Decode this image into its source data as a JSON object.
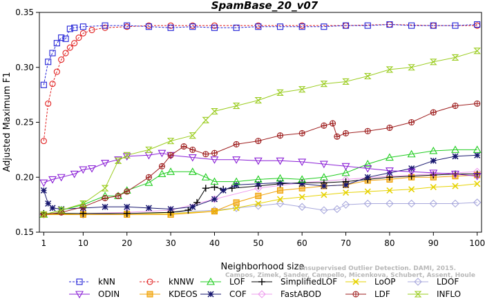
{
  "chart_data": {
    "type": "line",
    "title": "SpamBase_20_v07",
    "xlabel": "Neighborhood size",
    "ylabel": "Adjusted Maximum F1",
    "xlim": [
      0,
      101
    ],
    "ylim": [
      0.15,
      0.35
    ],
    "x_ticks": [
      1,
      10,
      20,
      30,
      40,
      50,
      60,
      70,
      80,
      90,
      100
    ],
    "y_ticks": [
      0.15,
      0.2,
      0.25,
      0.3,
      0.35
    ],
    "y_tick_labels": [
      "0.15",
      "0.20",
      "0.25",
      "0.30",
      "0.35"
    ],
    "grid": false,
    "legend_position": "bottom",
    "series": [
      {
        "name": "kNN",
        "color": "#1f1fd6",
        "dash": "3,2",
        "marker": "square",
        "points": [
          [
            1,
            0.284
          ],
          [
            2,
            0.305
          ],
          [
            3,
            0.313
          ],
          [
            4,
            0.322
          ],
          [
            5,
            0.327
          ],
          [
            6,
            0.326
          ],
          [
            7,
            0.335
          ],
          [
            8,
            0.336
          ],
          [
            10,
            0.337
          ],
          [
            15,
            0.338
          ],
          [
            20,
            0.338
          ],
          [
            25,
            0.337
          ],
          [
            30,
            0.336
          ],
          [
            35,
            0.337
          ],
          [
            40,
            0.336
          ],
          [
            45,
            0.336
          ],
          [
            50,
            0.337
          ],
          [
            55,
            0.337
          ],
          [
            60,
            0.337
          ],
          [
            65,
            0.337
          ],
          [
            70,
            0.338
          ],
          [
            75,
            0.338
          ],
          [
            80,
            0.339
          ],
          [
            85,
            0.338
          ],
          [
            90,
            0.338
          ],
          [
            95,
            0.338
          ],
          [
            100,
            0.339
          ]
        ]
      },
      {
        "name": "kNNW",
        "color": "#e01c1c",
        "dash": "3,2",
        "marker": "circle",
        "points": [
          [
            1,
            0.233
          ],
          [
            2,
            0.267
          ],
          [
            3,
            0.285
          ],
          [
            4,
            0.296
          ],
          [
            5,
            0.307
          ],
          [
            6,
            0.313
          ],
          [
            7,
            0.318
          ],
          [
            8,
            0.322
          ],
          [
            9,
            0.327
          ],
          [
            10,
            0.331
          ],
          [
            12,
            0.334
          ],
          [
            15,
            0.336
          ],
          [
            20,
            0.337
          ],
          [
            25,
            0.338
          ],
          [
            30,
            0.338
          ],
          [
            35,
            0.338
          ],
          [
            40,
            0.338
          ],
          [
            50,
            0.338
          ],
          [
            60,
            0.338
          ],
          [
            70,
            0.338
          ],
          [
            80,
            0.339
          ],
          [
            90,
            0.338
          ],
          [
            100,
            0.338
          ]
        ]
      },
      {
        "name": "LOF",
        "color": "#1ecc1e",
        "dash": "",
        "marker": "triangle-up",
        "points": [
          [
            1,
            0.166
          ],
          [
            5,
            0.17
          ],
          [
            10,
            0.175
          ],
          [
            15,
            0.183
          ],
          [
            18,
            0.183
          ],
          [
            20,
            0.188
          ],
          [
            25,
            0.195
          ],
          [
            28,
            0.203
          ],
          [
            30,
            0.205
          ],
          [
            35,
            0.205
          ],
          [
            38,
            0.2
          ],
          [
            40,
            0.196
          ],
          [
            45,
            0.196
          ],
          [
            50,
            0.198
          ],
          [
            55,
            0.199
          ],
          [
            60,
            0.198
          ],
          [
            65,
            0.2
          ],
          [
            70,
            0.204
          ],
          [
            75,
            0.212
          ],
          [
            80,
            0.218
          ],
          [
            85,
            0.221
          ],
          [
            90,
            0.224
          ],
          [
            95,
            0.225
          ],
          [
            100,
            0.225
          ]
        ]
      },
      {
        "name": "SimplifiedLOF",
        "color": "#000000",
        "dash": "",
        "marker": "plus",
        "points": [
          [
            1,
            0.167
          ],
          [
            10,
            0.167
          ],
          [
            20,
            0.167
          ],
          [
            30,
            0.168
          ],
          [
            34,
            0.17
          ],
          [
            36,
            0.177
          ],
          [
            38,
            0.19
          ],
          [
            40,
            0.191
          ],
          [
            42,
            0.189
          ],
          [
            44,
            0.19
          ],
          [
            50,
            0.192
          ],
          [
            55,
            0.194
          ],
          [
            60,
            0.195
          ],
          [
            65,
            0.195
          ],
          [
            70,
            0.196
          ],
          [
            75,
            0.198
          ],
          [
            80,
            0.2
          ],
          [
            85,
            0.201
          ],
          [
            90,
            0.202
          ],
          [
            95,
            0.203
          ],
          [
            100,
            0.203
          ]
        ]
      },
      {
        "name": "LoOP",
        "color": "#e6d200",
        "dash": "",
        "marker": "cross",
        "points": [
          [
            1,
            0.166
          ],
          [
            10,
            0.167
          ],
          [
            20,
            0.167
          ],
          [
            30,
            0.167
          ],
          [
            40,
            0.169
          ],
          [
            45,
            0.172
          ],
          [
            50,
            0.176
          ],
          [
            55,
            0.18
          ],
          [
            60,
            0.182
          ],
          [
            65,
            0.184
          ],
          [
            70,
            0.186
          ],
          [
            75,
            0.187
          ],
          [
            80,
            0.188
          ],
          [
            85,
            0.189
          ],
          [
            90,
            0.191
          ],
          [
            95,
            0.192
          ],
          [
            100,
            0.194
          ]
        ]
      },
      {
        "name": "LDOF",
        "color": "#a8a8dc",
        "dash": "",
        "marker": "diamond",
        "points": [
          [
            1,
            0.166
          ],
          [
            10,
            0.166
          ],
          [
            20,
            0.167
          ],
          [
            30,
            0.168
          ],
          [
            40,
            0.17
          ],
          [
            45,
            0.172
          ],
          [
            50,
            0.174
          ],
          [
            55,
            0.176
          ],
          [
            60,
            0.173
          ],
          [
            65,
            0.17
          ],
          [
            68,
            0.171
          ],
          [
            70,
            0.175
          ],
          [
            75,
            0.176
          ],
          [
            80,
            0.176
          ],
          [
            85,
            0.176
          ],
          [
            90,
            0.176
          ],
          [
            95,
            0.176
          ],
          [
            100,
            0.177
          ]
        ]
      },
      {
        "name": "ODIN",
        "color": "#8a1fd6",
        "dash": "",
        "marker": "triangle-down",
        "points": [
          [
            1,
            0.195
          ],
          [
            3,
            0.198
          ],
          [
            5,
            0.2
          ],
          [
            8,
            0.203
          ],
          [
            10,
            0.207
          ],
          [
            12,
            0.208
          ],
          [
            15,
            0.213
          ],
          [
            18,
            0.216
          ],
          [
            20,
            0.219
          ],
          [
            25,
            0.22
          ],
          [
            28,
            0.222
          ],
          [
            30,
            0.22
          ],
          [
            35,
            0.218
          ],
          [
            40,
            0.216
          ],
          [
            45,
            0.216
          ],
          [
            50,
            0.215
          ],
          [
            55,
            0.215
          ],
          [
            60,
            0.214
          ],
          [
            65,
            0.212
          ],
          [
            70,
            0.21
          ],
          [
            75,
            0.208
          ],
          [
            80,
            0.206
          ],
          [
            85,
            0.205
          ],
          [
            90,
            0.204
          ],
          [
            95,
            0.203
          ],
          [
            100,
            0.201
          ]
        ]
      },
      {
        "name": "KDEOS",
        "color": "#f0a000",
        "dash": "",
        "marker": "square-filled",
        "points": [
          [
            1,
            0.166
          ],
          [
            10,
            0.166
          ],
          [
            20,
            0.166
          ],
          [
            30,
            0.166
          ],
          [
            40,
            0.169
          ],
          [
            45,
            0.177
          ],
          [
            50,
            0.183
          ],
          [
            55,
            0.188
          ],
          [
            60,
            0.19
          ],
          [
            65,
            0.192
          ],
          [
            70,
            0.193
          ],
          [
            75,
            0.197
          ],
          [
            80,
            0.198
          ],
          [
            85,
            0.2
          ],
          [
            90,
            0.2
          ],
          [
            95,
            0.201
          ],
          [
            100,
            0.202
          ]
        ]
      },
      {
        "name": "COF",
        "color": "#16166e",
        "dash": "",
        "marker": "star",
        "points": [
          [
            1,
            0.188
          ],
          [
            2,
            0.176
          ],
          [
            3,
            0.172
          ],
          [
            5,
            0.171
          ],
          [
            10,
            0.172
          ],
          [
            15,
            0.173
          ],
          [
            20,
            0.173
          ],
          [
            25,
            0.172
          ],
          [
            30,
            0.171
          ],
          [
            35,
            0.173
          ],
          [
            40,
            0.18
          ],
          [
            42,
            0.188
          ],
          [
            45,
            0.193
          ],
          [
            50,
            0.194
          ],
          [
            55,
            0.195
          ],
          [
            60,
            0.194
          ],
          [
            65,
            0.192
          ],
          [
            70,
            0.193
          ],
          [
            75,
            0.2
          ],
          [
            80,
            0.204
          ],
          [
            85,
            0.208
          ],
          [
            90,
            0.215
          ],
          [
            95,
            0.219
          ],
          [
            100,
            0.22
          ]
        ]
      },
      {
        "name": "FastABOD",
        "color": "#ee9cee",
        "dash": "",
        "marker": "diamond",
        "points": [
          [
            1,
            0.166
          ],
          [
            10,
            0.167
          ],
          [
            20,
            0.168
          ],
          [
            30,
            0.17
          ],
          [
            40,
            0.18
          ],
          [
            50,
            0.19
          ],
          [
            60,
            0.195
          ],
          [
            70,
            0.198
          ],
          [
            80,
            0.201
          ],
          [
            90,
            0.203
          ],
          [
            100,
            0.205
          ]
        ]
      },
      {
        "name": "LDF",
        "color": "#9e1e1e",
        "dash": "",
        "marker": "circle-plus",
        "points": [
          [
            1,
            0.166
          ],
          [
            5,
            0.168
          ],
          [
            10,
            0.173
          ],
          [
            15,
            0.181
          ],
          [
            18,
            0.183
          ],
          [
            20,
            0.187
          ],
          [
            25,
            0.2
          ],
          [
            28,
            0.21
          ],
          [
            30,
            0.22
          ],
          [
            33,
            0.228
          ],
          [
            35,
            0.225
          ],
          [
            38,
            0.221
          ],
          [
            40,
            0.222
          ],
          [
            45,
            0.23
          ],
          [
            50,
            0.233
          ],
          [
            55,
            0.238
          ],
          [
            60,
            0.24
          ],
          [
            65,
            0.247
          ],
          [
            67,
            0.249
          ],
          [
            68,
            0.237
          ],
          [
            70,
            0.24
          ],
          [
            75,
            0.242
          ],
          [
            80,
            0.245
          ],
          [
            85,
            0.25
          ],
          [
            90,
            0.259
          ],
          [
            95,
            0.265
          ],
          [
            100,
            0.267
          ]
        ]
      },
      {
        "name": "INFLO",
        "color": "#9acc1e",
        "dash": "",
        "marker": "hourglass",
        "points": [
          [
            1,
            0.166
          ],
          [
            5,
            0.17
          ],
          [
            10,
            0.176
          ],
          [
            15,
            0.19
          ],
          [
            18,
            0.215
          ],
          [
            20,
            0.22
          ],
          [
            25,
            0.225
          ],
          [
            30,
            0.233
          ],
          [
            35,
            0.238
          ],
          [
            38,
            0.252
          ],
          [
            40,
            0.26
          ],
          [
            45,
            0.265
          ],
          [
            50,
            0.27
          ],
          [
            55,
            0.277
          ],
          [
            60,
            0.28
          ],
          [
            65,
            0.285
          ],
          [
            70,
            0.287
          ],
          [
            75,
            0.292
          ],
          [
            80,
            0.298
          ],
          [
            85,
            0.3
          ],
          [
            90,
            0.305
          ],
          [
            95,
            0.309
          ],
          [
            100,
            0.315
          ]
        ]
      }
    ],
    "legend_order": [
      "kNN",
      "kNNW",
      "LOF",
      "SimplifiedLOF",
      "LoOP",
      "LDOF",
      "ODIN",
      "KDEOS",
      "COF",
      "FastABOD",
      "LDF",
      "INFLO"
    ],
    "watermark": [
      "Unsupervised Outlier Detection. DAMI, 2015.",
      "Campos, Zimek, Sander, Campello, Micenkova, Schubert, Assent, Houle"
    ]
  }
}
